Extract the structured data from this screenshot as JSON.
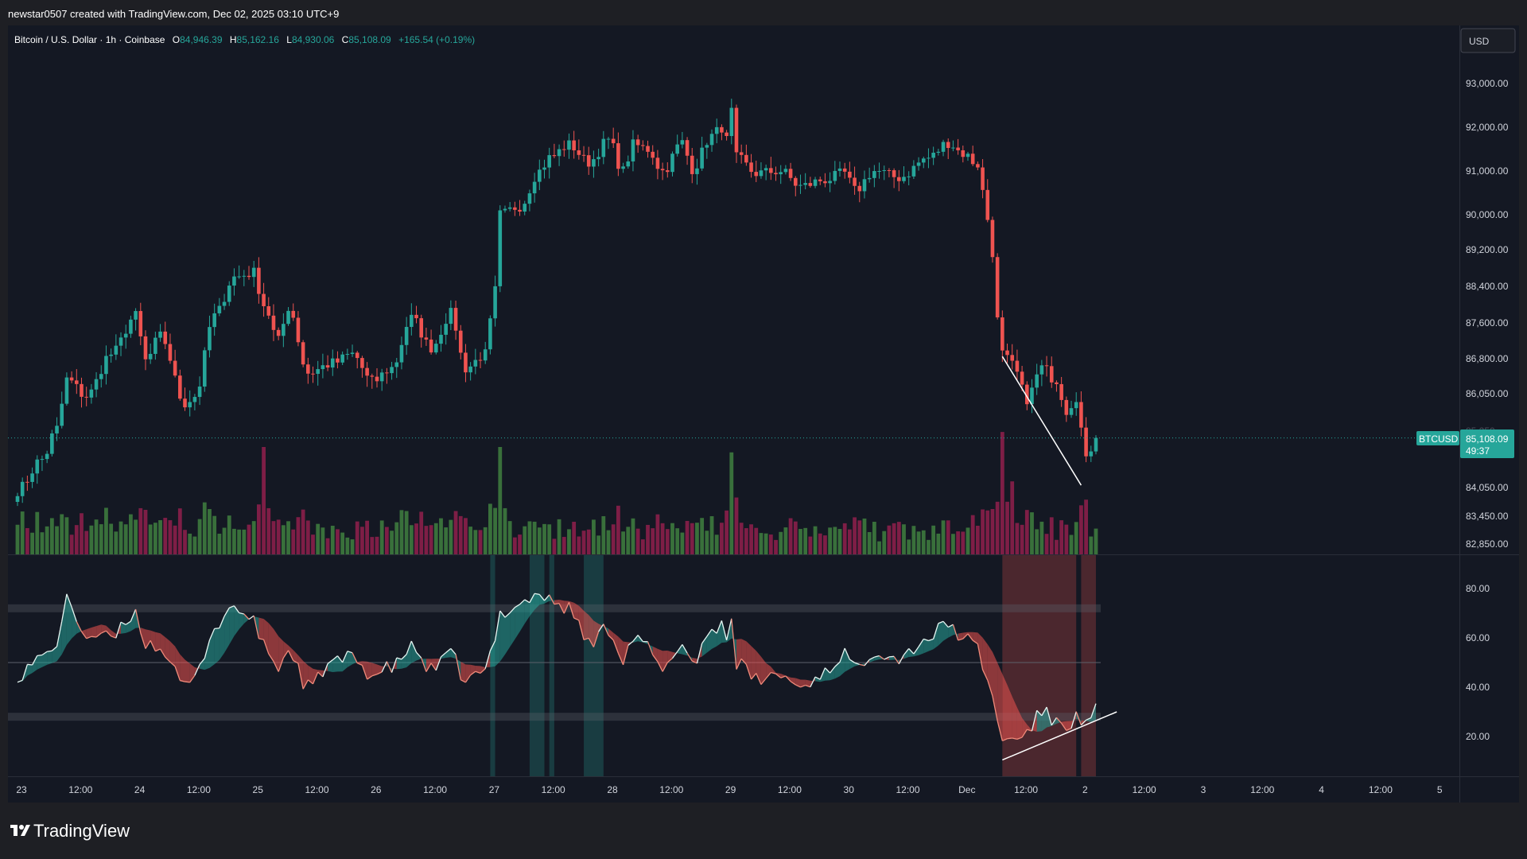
{
  "header": {
    "credit": "newstar0507 created with TradingView.com, Dec 02, 2025 03:10 UTC+9"
  },
  "legend": {
    "symbol": "Bitcoin / U.S. Dollar · 1h · Coinbase",
    "o_label": "O",
    "o_value": "84,946.39",
    "h_label": "H",
    "h_value": "85,162.16",
    "l_label": "L",
    "l_value": "84,930.06",
    "c_label": "C",
    "c_value": "85,108.09",
    "change": "+165.54 (+0.19%)"
  },
  "currency_button": "USD",
  "price_badge": {
    "ticker": "BTCUSD",
    "price": "85,108.09",
    "countdown": "49:37",
    "partial_label": "85,250"
  },
  "brand": "TradingView",
  "colors": {
    "up": "#26a69a",
    "down": "#ef5350",
    "vol_up": "#3d7a3e",
    "vol_down": "#8a1f4a",
    "background": "#141823",
    "rsi_line_up": "#e6f7f3",
    "rsi_line_down": "#f08a7a"
  },
  "chart_data": [
    {
      "type": "candlestick",
      "title": "Bitcoin / U.S. Dollar · 1h · Coinbase",
      "y_axis": {
        "ticks": [
          93000,
          92000,
          91000,
          90000,
          89200,
          88400,
          87600,
          86800,
          86050,
          84050,
          83450,
          82850
        ],
        "tick_labels": [
          "93,000.00",
          "92,000.00",
          "91,000.00",
          "90,000.00",
          "89,200.00",
          "88,400.00",
          "87,600.00",
          "86,800.00",
          "86,050.00",
          "84,050.00",
          "83,450.00",
          "82,850.00"
        ],
        "scale": "auto (non-linear)"
      },
      "x_axis": {
        "ticks": [
          "23",
          "12:00",
          "24",
          "12:00",
          "25",
          "12:00",
          "26",
          "12:00",
          "27",
          "12:00",
          "28",
          "12:00",
          "29",
          "12:00",
          "30",
          "12:00",
          "Dec",
          "12:00",
          "2",
          "12:00",
          "3",
          "12:00",
          "4",
          "12:00",
          "5"
        ]
      },
      "last_price": 85108.09,
      "price_anchors": [
        [
          "Nov 23 00:00",
          84000
        ],
        [
          "Nov 23 05:00",
          84650
        ],
        [
          "Nov 23 08:00",
          85300
        ],
        [
          "Nov 23 10:00",
          86350
        ],
        [
          "Nov 23 14:00",
          86000
        ],
        [
          "Nov 23 19:00",
          86900
        ],
        [
          "Nov 24 00:00",
          87750
        ],
        [
          "Nov 24 02:00",
          86750
        ],
        [
          "Nov 24 05:00",
          87300
        ],
        [
          "Nov 24 10:00",
          85850
        ],
        [
          "Nov 24 12:00",
          86000
        ],
        [
          "Nov 24 16:00",
          87750
        ],
        [
          "Nov 24 20:00",
          88600
        ],
        [
          "Nov 25 00:00",
          88700
        ],
        [
          "Nov 25 02:00",
          88000
        ],
        [
          "Nov 25 05:00",
          87200
        ],
        [
          "Nov 25 07:00",
          87950
        ],
        [
          "Nov 25 11:00",
          86500
        ],
        [
          "Nov 25 16:00",
          86700
        ],
        [
          "Nov 25 20:00",
          86900
        ],
        [
          "Nov 26 00:00",
          86300
        ],
        [
          "Nov 26 04:00",
          86600
        ],
        [
          "Nov 26 08:00",
          87700
        ],
        [
          "Nov 26 12:00",
          87050
        ],
        [
          "Nov 26 16:00",
          87800
        ],
        [
          "Nov 26 19:00",
          86600
        ],
        [
          "Nov 26 23:00",
          86900
        ],
        [
          "Nov 27 01:00",
          88300
        ],
        [
          "Nov 27 02:00",
          90000
        ],
        [
          "Nov 27 06:00",
          90200
        ],
        [
          "Nov 27 10:00",
          91000
        ],
        [
          "Nov 27 12:00",
          91300
        ],
        [
          "Nov 27 16:00",
          91600
        ],
        [
          "Nov 27 20:00",
          91200
        ],
        [
          "Nov 28 00:00",
          91700
        ],
        [
          "Nov 28 03:00",
          91000
        ],
        [
          "Nov 28 05:00",
          91600
        ],
        [
          "Nov 28 08:00",
          91500
        ],
        [
          "Nov 28 11:00",
          91000
        ],
        [
          "Nov 28 15:00",
          91650
        ],
        [
          "Nov 28 17:00",
          91050
        ],
        [
          "Nov 28 21:00",
          91800
        ],
        [
          "Nov 28 23:00",
          92000
        ],
        [
          "Nov 29 00:00",
          91700
        ],
        [
          "Nov 29 01:00",
          92350
        ],
        [
          "Nov 29 02:00",
          91300
        ],
        [
          "Nov 29 06:00",
          90950
        ],
        [
          "Nov 29 11:00",
          91000
        ],
        [
          "Nov 29 15:00",
          90650
        ],
        [
          "Nov 29 20:00",
          90800
        ],
        [
          "Nov 30 00:00",
          90950
        ],
        [
          "Nov 30 02:00",
          90550
        ],
        [
          "Nov 30 06:00",
          91000
        ],
        [
          "Nov 30 11:00",
          90850
        ],
        [
          "Nov 30 17:00",
          91300
        ],
        [
          "Nov 30 21:00",
          91650
        ],
        [
          "Dec 01 00:00",
          91400
        ],
        [
          "Dec 01 03:00",
          91150
        ],
        [
          "Dec 01 05:00",
          89900
        ],
        [
          "Dec 01 08:00",
          86900
        ],
        [
          "Dec 01 10:00",
          86650
        ],
        [
          "Dec 01 13:00",
          85950
        ],
        [
          "Dec 01 16:00",
          86600
        ],
        [
          "Dec 01 19:00",
          86350
        ],
        [
          "Dec 01 21:00",
          85700
        ],
        [
          "Dec 01 23:00",
          86000
        ],
        [
          "Dec 02 01:00",
          84600
        ],
        [
          "Dec 02 02:00",
          84900
        ],
        [
          "Dec 02 03:00",
          85108.09
        ]
      ]
    },
    {
      "type": "bar",
      "title": "Volume",
      "color_rule": "green when candle closes up, red/magenta when candle closes down",
      "relative_peaks": [
        [
          "Nov 27 02:00",
          1.0
        ],
        [
          "Nov 25 02:00",
          1.0
        ],
        [
          "Nov 29 01:00",
          0.95
        ],
        [
          "Dec 01 08:00",
          1.14
        ],
        [
          "Dec 01 10:00",
          0.68
        ]
      ]
    },
    {
      "type": "area",
      "title": "RSI oscillator",
      "y_axis": {
        "ticks": [
          80,
          60,
          40,
          20
        ],
        "tick_labels": [
          "80.00",
          "60.00",
          "40.00",
          "20.00"
        ],
        "ylim": [
          10,
          90
        ]
      },
      "bands": {
        "upper": 72,
        "middle": 50,
        "lower": 28
      },
      "rsi_anchors": [
        [
          "Nov 23 00:00",
          45
        ],
        [
          "Nov 23 05:00",
          52
        ],
        [
          "Nov 23 08:00",
          58
        ],
        [
          "Nov 23 10:00",
          75
        ],
        [
          "Nov 23 14:00",
          61
        ],
        [
          "Nov 23 19:00",
          60
        ],
        [
          "Nov 24 00:00",
          70
        ],
        [
          "Nov 24 02:00",
          58
        ],
        [
          "Nov 24 05:00",
          56
        ],
        [
          "Nov 24 10:00",
          40
        ],
        [
          "Nov 24 12:00",
          44
        ],
        [
          "Nov 24 16:00",
          64
        ],
        [
          "Nov 24 20:00",
          73
        ],
        [
          "Nov 25 00:00",
          66
        ],
        [
          "Nov 25 02:00",
          57
        ],
        [
          "Nov 25 05:00",
          48
        ],
        [
          "Nov 25 07:00",
          55
        ],
        [
          "Nov 25 11:00",
          40
        ],
        [
          "Nov 25 16:00",
          50
        ],
        [
          "Nov 25 20:00",
          52
        ],
        [
          "Nov 26 00:00",
          45
        ],
        [
          "Nov 26 04:00",
          48
        ],
        [
          "Nov 26 08:00",
          56
        ],
        [
          "Nov 26 12:00",
          47
        ],
        [
          "Nov 26 16:00",
          53
        ],
        [
          "Nov 26 19:00",
          43
        ],
        [
          "Nov 26 23:00",
          46
        ],
        [
          "Nov 27 01:00",
          60
        ],
        [
          "Nov 27 02:00",
          70
        ],
        [
          "Nov 27 06:00",
          74
        ],
        [
          "Nov 27 10:00",
          78
        ],
        [
          "Nov 27 12:00",
          75
        ],
        [
          "Nov 27 16:00",
          72
        ],
        [
          "Nov 27 20:00",
          58
        ],
        [
          "Nov 28 00:00",
          64
        ],
        [
          "Nov 28 03:00",
          52
        ],
        [
          "Nov 28 05:00",
          60
        ],
        [
          "Nov 28 08:00",
          56
        ],
        [
          "Nov 28 11:00",
          46
        ],
        [
          "Nov 28 15:00",
          58
        ],
        [
          "Nov 28 17:00",
          50
        ],
        [
          "Nov 28 21:00",
          63
        ],
        [
          "Nov 28 23:00",
          66
        ],
        [
          "Nov 29 00:00",
          60
        ],
        [
          "Nov 29 01:00",
          68
        ],
        [
          "Nov 29 02:00",
          50
        ],
        [
          "Nov 29 06:00",
          43
        ],
        [
          "Nov 29 11:00",
          45
        ],
        [
          "Nov 29 15:00",
          40
        ],
        [
          "Nov 29 20:00",
          46
        ],
        [
          "Nov 30 00:00",
          54
        ],
        [
          "Nov 30 02:00",
          47
        ],
        [
          "Nov 30 06:00",
          55
        ],
        [
          "Nov 30 11:00",
          52
        ],
        [
          "Nov 30 17:00",
          60
        ],
        [
          "Nov 30 21:00",
          66
        ],
        [
          "Dec 01 00:00",
          60
        ],
        [
          "Dec 01 03:00",
          56
        ],
        [
          "Dec 01 05:00",
          42
        ],
        [
          "Dec 01 08:00",
          20
        ],
        [
          "Dec 01 10:00",
          18
        ],
        [
          "Dec 01 13:00",
          22
        ],
        [
          "Dec 01 16:00",
          30
        ],
        [
          "Dec 01 19:00",
          26
        ],
        [
          "Dec 01 21:00",
          24
        ],
        [
          "Dec 01 23:00",
          28
        ],
        [
          "Dec 02 01:00",
          24
        ],
        [
          "Dec 02 02:00",
          28
        ],
        [
          "Dec 02 03:00",
          31
        ]
      ]
    }
  ]
}
